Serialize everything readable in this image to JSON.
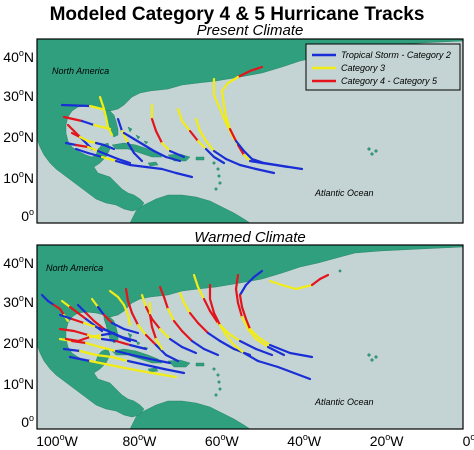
{
  "title": "Modeled Category 4 & 5 Hurricane Tracks",
  "panels": [
    {
      "id": "present",
      "subtitle": "Present Climate",
      "ocean_label": "Atlantic Ocean",
      "land_label": "North America"
    },
    {
      "id": "warmed",
      "subtitle": "Warmed Climate",
      "ocean_label": "Atlantic Ocean",
      "land_label": "North America"
    }
  ],
  "legend": [
    {
      "label": "Tropical Storm - Category 2",
      "color": "#1a2ed6"
    },
    {
      "label": "Category 3",
      "color": "#f2ec16"
    },
    {
      "label": "Category 4 - Category 5",
      "color": "#e3141c"
    }
  ],
  "lat_ticks": [
    {
      "num": "40",
      "suf": "N"
    },
    {
      "num": "30",
      "suf": "N"
    },
    {
      "num": "20",
      "suf": "N"
    },
    {
      "num": "10",
      "suf": "N"
    },
    {
      "num": "0",
      "suf": ""
    }
  ],
  "lon_ticks": [
    {
      "num": "100",
      "suf": "W",
      "lon": -100
    },
    {
      "num": "80",
      "suf": "W",
      "lon": -80
    },
    {
      "num": "60",
      "suf": "W",
      "lon": -60
    },
    {
      "num": "40",
      "suf": "W",
      "lon": -40
    },
    {
      "num": "20",
      "suf": "W",
      "lon": -20
    },
    {
      "num": "0",
      "suf": "",
      "lon": 0
    }
  ],
  "colors": {
    "ocean": "#c4d4d4",
    "land": "#2f9f7e",
    "ts": "#1a2ed6",
    "c3": "#f2ec16",
    "c45": "#e3141c"
  }
}
